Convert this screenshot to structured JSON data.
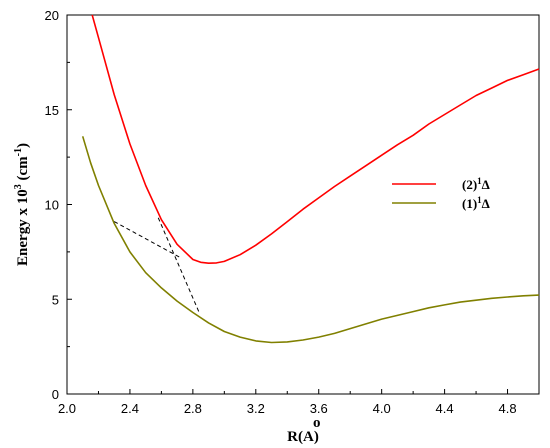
{
  "chart_data": {
    "type": "line",
    "xlabel": "R(Å)",
    "xlabel_prefix": "R(",
    "xlabel_symbol": "A",
    "xlabel_suffix": ")",
    "ylabel_main": "Energy x 10",
    "ylabel_exp": "3",
    "ylabel_unit": " (cm",
    "ylabel_unit_exp": "-1",
    "ylabel_close": ")",
    "xlim": [
      2.0,
      5.0
    ],
    "ylim": [
      0,
      20
    ],
    "xticks": [
      2.0,
      2.4,
      2.8,
      3.2,
      3.6,
      4.0,
      4.4,
      4.8
    ],
    "xtick_labels": [
      "2.0",
      "2.4",
      "2.8",
      "3.2",
      "3.6",
      "4.0",
      "4.4",
      "4.8"
    ],
    "yticks": [
      0,
      5,
      10,
      15,
      20
    ],
    "ytick_labels": [
      "0",
      "5",
      "10",
      "15",
      "20"
    ],
    "grid": false,
    "legend_position": "right",
    "series": [
      {
        "name": "(2)¹Δ",
        "label_main": "(2)",
        "label_sup": "1",
        "label_sym": "Δ",
        "color": "#ff0000",
        "x": [
          2.16,
          2.2,
          2.3,
          2.4,
          2.5,
          2.6,
          2.7,
          2.8,
          2.85,
          2.9,
          2.95,
          3.0,
          3.1,
          3.2,
          3.3,
          3.4,
          3.5,
          3.6,
          3.7,
          3.8,
          3.9,
          4.0,
          4.1,
          4.2,
          4.3,
          4.4,
          4.5,
          4.6,
          4.7,
          4.8,
          4.9,
          5.0
        ],
        "y": [
          20.0,
          18.8,
          15.8,
          13.2,
          11.0,
          9.2,
          7.9,
          7.1,
          6.95,
          6.9,
          6.92,
          7.0,
          7.35,
          7.85,
          8.45,
          9.1,
          9.75,
          10.35,
          10.95,
          11.5,
          12.05,
          12.6,
          13.15,
          13.65,
          14.25,
          14.75,
          15.25,
          15.75,
          16.15,
          16.55,
          16.85,
          17.15
        ]
      },
      {
        "name": "(1)¹Δ",
        "label_main": "(1)",
        "label_sup": "1",
        "label_sym": "Δ",
        "color": "#808000",
        "x": [
          2.1,
          2.15,
          2.2,
          2.3,
          2.4,
          2.5,
          2.6,
          2.7,
          2.8,
          2.9,
          3.0,
          3.1,
          3.2,
          3.3,
          3.4,
          3.5,
          3.6,
          3.7,
          3.8,
          3.9,
          4.0,
          4.1,
          4.2,
          4.3,
          4.4,
          4.5,
          4.6,
          4.7,
          4.8,
          4.9,
          5.0
        ],
        "y": [
          13.6,
          12.2,
          11.0,
          9.0,
          7.5,
          6.4,
          5.6,
          4.9,
          4.3,
          3.75,
          3.3,
          3.0,
          2.8,
          2.72,
          2.75,
          2.85,
          3.0,
          3.2,
          3.45,
          3.7,
          3.95,
          4.15,
          4.35,
          4.55,
          4.7,
          4.85,
          4.95,
          5.05,
          5.12,
          5.18,
          5.22
        ]
      }
    ],
    "dashed_lines": [
      {
        "x": [
          2.3,
          2.72
        ],
        "y": [
          9.1,
          7.2
        ]
      },
      {
        "x": [
          2.58,
          2.84
        ],
        "y": [
          9.3,
          4.3
        ]
      }
    ]
  }
}
